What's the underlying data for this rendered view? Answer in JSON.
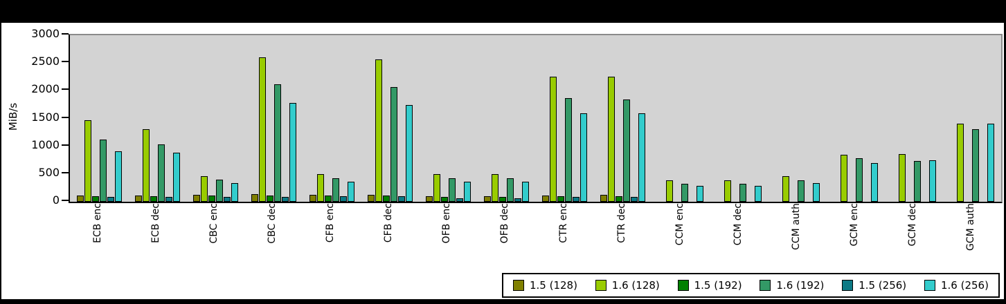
{
  "chart_data": {
    "type": "bar",
    "title": "",
    "xlabel": "",
    "ylabel": "MiB/s",
    "ylim": [
      0,
      3000
    ],
    "yticks": [
      0,
      500,
      1000,
      1500,
      2000,
      2500,
      3000
    ],
    "grid": false,
    "legend_position": "bottom-right",
    "plot_background": "#d3d3d3",
    "categories": [
      "ECB enc",
      "ECB dec",
      "CBC enc",
      "CBC dec",
      "CFB enc",
      "CFB dec",
      "OFB enc",
      "OFB dec",
      "CTR enc",
      "CTR dec",
      "CCM enc",
      "CCM dec",
      "CCM auth",
      "GCM enc",
      "GCM dec",
      "GCM auth"
    ],
    "series": [
      {
        "name": "1.5 (128)",
        "color": "#808000",
        "values": [
          110,
          110,
          130,
          140,
          125,
          125,
          105,
          105,
          115,
          125,
          0,
          0,
          0,
          0,
          0,
          0
        ]
      },
      {
        "name": "1.6 (128)",
        "color": "#99cc00",
        "values": [
          1470,
          1310,
          460,
          2600,
          500,
          2570,
          500,
          500,
          2250,
          2250,
          385,
          385,
          455,
          845,
          855,
          1410
        ]
      },
      {
        "name": "1.5 (192)",
        "color": "#008000",
        "values": [
          100,
          100,
          110,
          115,
          110,
          110,
          85,
          85,
          105,
          105,
          0,
          0,
          0,
          0,
          0,
          0
        ]
      },
      {
        "name": "1.6 (192)",
        "color": "#339966",
        "values": [
          1120,
          1035,
          395,
          2110,
          425,
          2070,
          420,
          420,
          1870,
          1845,
          320,
          320,
          390,
          790,
          735,
          1310
        ]
      },
      {
        "name": "1.5 (256)",
        "color": "#0c7a85",
        "values": [
          85,
          85,
          90,
          90,
          95,
          95,
          60,
          60,
          90,
          90,
          0,
          0,
          0,
          0,
          0,
          0
        ]
      },
      {
        "name": "1.6 (256)",
        "color": "#33cccc",
        "values": [
          910,
          885,
          340,
          1775,
          360,
          1745,
          360,
          365,
          1595,
          1595,
          285,
          285,
          340,
          695,
          745,
          1410
        ]
      }
    ]
  }
}
